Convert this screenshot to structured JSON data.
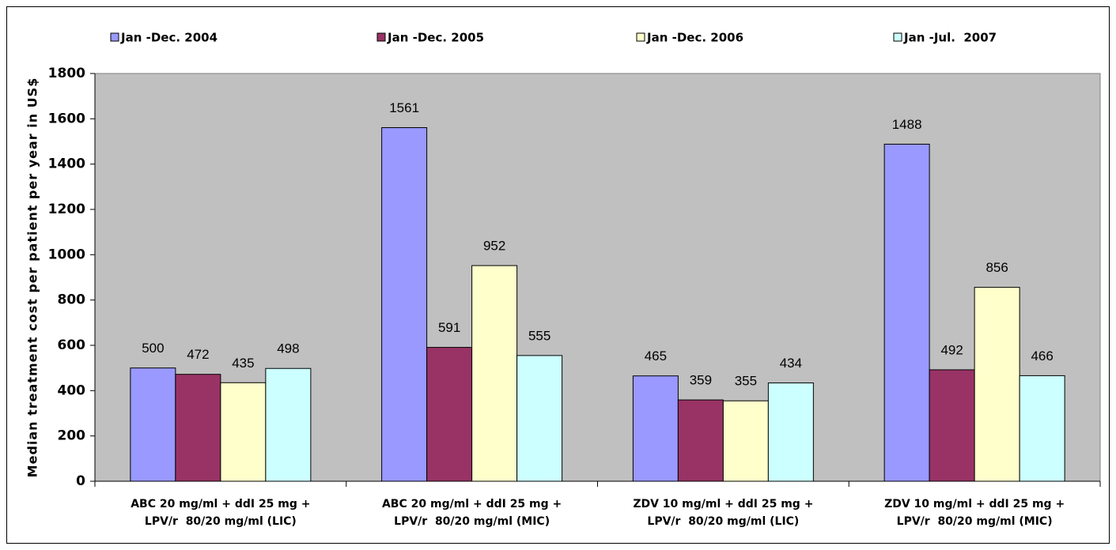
{
  "chart_data": {
    "type": "bar",
    "y_label": "Median treatment cost per patient per year in US$",
    "categories": [
      [
        "ABC 20 mg/ml + ddI 25 mg +",
        "LPV/r  80/20 mg/ml (LIC)"
      ],
      [
        "ABC 20 mg/ml + ddI 25 mg +",
        "LPV/r  80/20 mg/ml (MIC)"
      ],
      [
        "ZDV 10 mg/ml + ddI 25 mg +",
        "LPV/r  80/20 mg/ml (LIC)"
      ],
      [
        "ZDV 10 mg/ml + ddI 25 mg +",
        "LPV/r  80/20 mg/ml (MIC)"
      ]
    ],
    "series": [
      {
        "name": "Jan -Dec. 2004",
        "color": "#9999ff",
        "values": [
          500,
          1561,
          465,
          1488
        ]
      },
      {
        "name": "Jan -Dec. 2005",
        "color": "#993366",
        "values": [
          472,
          591,
          359,
          492
        ]
      },
      {
        "name": "Jan -Dec. 2006",
        "color": "#ffffcc",
        "values": [
          435,
          952,
          355,
          856
        ]
      },
      {
        "name": "Jan -Jul.  2007",
        "color": "#ccffff",
        "values": [
          498,
          555,
          434,
          466
        ]
      }
    ],
    "ylim": [
      0,
      1800
    ],
    "yticks": [
      0,
      200,
      400,
      600,
      800,
      1000,
      1200,
      1400,
      1600,
      1800
    ],
    "grid": false,
    "legend": "top",
    "plot_background": "#c0c0c0"
  }
}
